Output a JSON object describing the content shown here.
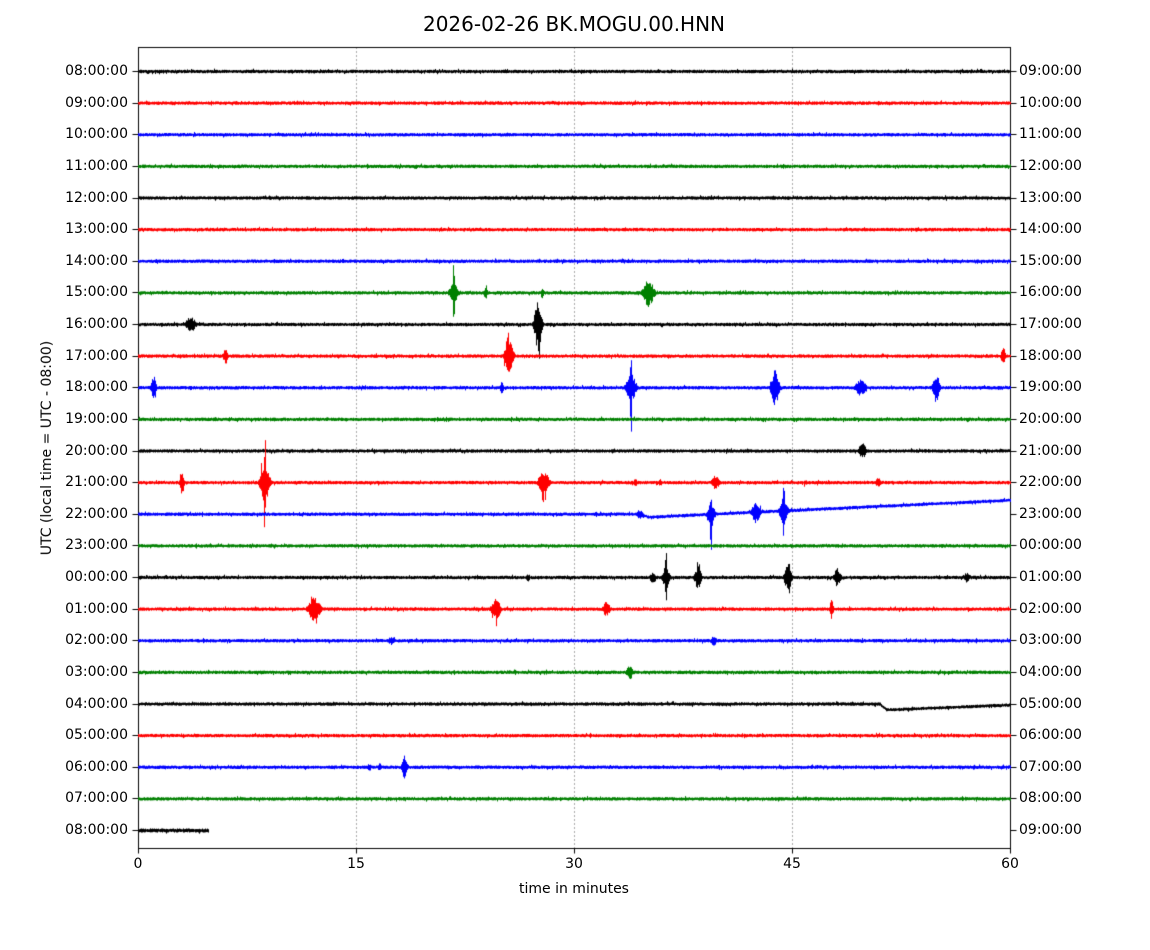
{
  "chart_data": {
    "type": "line",
    "subtype": "seismogram-dayplot",
    "title": "2026-02-26 BK.MOGU.00.HNN",
    "xlabel": "time in minutes",
    "ylabel": "UTC (local time = UTC - 08:00)",
    "x_range": [
      0,
      60
    ],
    "x_ticks": [
      0,
      15,
      30,
      45,
      60
    ],
    "gridlines_minutes": [
      15,
      30,
      45
    ],
    "grid_style": "dotted",
    "trace_color_cycle": [
      "#000000",
      "#ff0000",
      "#0000ff",
      "#008000"
    ],
    "minutes_per_row": 60,
    "rows": [
      {
        "start": "08:00:00",
        "end": "09:00:00",
        "color": "#000000",
        "events": []
      },
      {
        "start": "09:00:00",
        "end": "10:00:00",
        "color": "#ff0000",
        "events": []
      },
      {
        "start": "10:00:00",
        "end": "11:00:00",
        "color": "#0000ff",
        "events": []
      },
      {
        "start": "11:00:00",
        "end": "12:00:00",
        "color": "#008000",
        "events": []
      },
      {
        "start": "12:00:00",
        "end": "13:00:00",
        "color": "#000000",
        "events": []
      },
      {
        "start": "13:00:00",
        "end": "14:00:00",
        "color": "#ff0000",
        "events": []
      },
      {
        "start": "14:00:00",
        "end": "15:00:00",
        "color": "#0000ff",
        "events": []
      },
      {
        "start": "15:00:00",
        "end": "16:00:00",
        "color": "#008000",
        "events": [
          {
            "t": 21.7,
            "a": 30,
            "w": 0.12
          },
          {
            "t": 21.7,
            "a": 10,
            "w": 0.45
          },
          {
            "t": 23.9,
            "a": 9,
            "w": 0.15
          },
          {
            "t": 27.8,
            "a": 6,
            "w": 0.18
          },
          {
            "t": 35.1,
            "a": 14,
            "w": 0.55
          }
        ]
      },
      {
        "start": "16:00:00",
        "end": "17:00:00",
        "color": "#000000",
        "events": [
          {
            "t": 3.6,
            "a": 8,
            "w": 0.5
          },
          {
            "t": 27.5,
            "a": 26,
            "w": 0.35
          }
        ]
      },
      {
        "start": "17:00:00",
        "end": "18:00:00",
        "color": "#ff0000",
        "events": [
          {
            "t": 6.0,
            "a": 9,
            "w": 0.2
          },
          {
            "t": 25.5,
            "a": 21,
            "w": 0.4
          },
          {
            "t": 59.5,
            "a": 11,
            "w": 0.2
          }
        ]
      },
      {
        "start": "18:00:00",
        "end": "19:00:00",
        "color": "#0000ff",
        "events": [
          {
            "t": 1.05,
            "a": 12,
            "w": 0.25
          },
          {
            "t": 25.0,
            "a": 6,
            "w": 0.2
          },
          {
            "t": 33.9,
            "a": 45,
            "w": 0.12
          },
          {
            "t": 33.9,
            "a": 14,
            "w": 0.5
          },
          {
            "t": 43.8,
            "a": 17,
            "w": 0.4
          },
          {
            "t": 49.7,
            "a": 8,
            "w": 0.55
          },
          {
            "t": 54.9,
            "a": 14,
            "w": 0.35
          }
        ]
      },
      {
        "start": "19:00:00",
        "end": "20:00:00",
        "color": "#008000",
        "events": [
          {
            "t": 20.6,
            "a": 3,
            "w": 0.15
          },
          {
            "t": 21.2,
            "a": 3,
            "w": 0.12
          }
        ]
      },
      {
        "start": "20:00:00",
        "end": "21:00:00",
        "color": "#000000",
        "events": [
          {
            "t": 49.8,
            "a": 8,
            "w": 0.4
          }
        ]
      },
      {
        "start": "21:00:00",
        "end": "22:00:00",
        "color": "#ff0000",
        "events": [
          {
            "t": 3.0,
            "a": 13,
            "w": 0.2
          },
          {
            "t": 8.7,
            "a": 48,
            "w": 0.15
          },
          {
            "t": 8.7,
            "a": 22,
            "w": 0.45
          },
          {
            "t": 27.9,
            "a": 12,
            "w": 0.5
          },
          {
            "t": 34.2,
            "a": 4,
            "w": 0.25
          },
          {
            "t": 35.9,
            "a": 4,
            "w": 0.2
          },
          {
            "t": 39.7,
            "a": 7,
            "w": 0.4
          },
          {
            "t": 45.9,
            "a": 3,
            "w": 0.25
          },
          {
            "t": 50.9,
            "a": 5,
            "w": 0.3
          }
        ]
      },
      {
        "start": "22:00:00",
        "end": "23:00:00",
        "color": "#0000ff",
        "events": [
          {
            "t": 34.5,
            "a": 5,
            "w": 0.3
          },
          {
            "t": 39.4,
            "a": 25,
            "w": 0.15
          },
          {
            "t": 39.4,
            "a": 10,
            "w": 0.4
          },
          {
            "t": 42.5,
            "a": 12,
            "w": 0.4
          },
          {
            "t": 44.4,
            "a": 26,
            "w": 0.15
          },
          {
            "t": 44.4,
            "a": 11,
            "w": 0.45
          }
        ],
        "baseline_shift": {
          "t": 34.6,
          "dip": 3,
          "recover": 39.5,
          "end": 0
        }
      },
      {
        "start": "23:00:00",
        "end": "00:00:00",
        "color": "#008000",
        "events": []
      },
      {
        "start": "00:00:00",
        "end": "01:00:00",
        "color": "#000000",
        "events": [
          {
            "t": 26.8,
            "a": 4,
            "w": 0.25
          },
          {
            "t": 35.4,
            "a": 6,
            "w": 0.3
          },
          {
            "t": 36.3,
            "a": 26,
            "w": 0.15
          },
          {
            "t": 36.3,
            "a": 10,
            "w": 0.4
          },
          {
            "t": 38.5,
            "a": 11,
            "w": 0.35
          },
          {
            "t": 44.7,
            "a": 15,
            "w": 0.35
          },
          {
            "t": 48.1,
            "a": 9,
            "w": 0.35
          },
          {
            "t": 57.0,
            "a": 5,
            "w": 0.3
          }
        ]
      },
      {
        "start": "01:00:00",
        "end": "02:00:00",
        "color": "#ff0000",
        "events": [
          {
            "t": 12.1,
            "a": 12,
            "w": 0.6
          },
          {
            "t": 24.6,
            "a": 11,
            "w": 0.45
          },
          {
            "t": 32.2,
            "a": 8,
            "w": 0.35
          },
          {
            "t": 47.7,
            "a": 10,
            "w": 0.18
          }
        ]
      },
      {
        "start": "02:00:00",
        "end": "03:00:00",
        "color": "#0000ff",
        "events": [
          {
            "t": 17.4,
            "a": 4,
            "w": 0.4
          },
          {
            "t": 39.6,
            "a": 5,
            "w": 0.3
          }
        ]
      },
      {
        "start": "03:00:00",
        "end": "04:00:00",
        "color": "#008000",
        "events": [
          {
            "t": 33.8,
            "a": 8,
            "w": 0.3
          }
        ]
      },
      {
        "start": "04:00:00",
        "end": "05:00:00",
        "color": "#000000",
        "events": [],
        "baseline_shift": {
          "t": 51.0,
          "dip": 6,
          "recover": 60,
          "end": 1
        }
      },
      {
        "start": "05:00:00",
        "end": "06:00:00",
        "color": "#ff0000",
        "events": []
      },
      {
        "start": "06:00:00",
        "end": "07:00:00",
        "color": "#0000ff",
        "events": [
          {
            "t": 15.9,
            "a": 4,
            "w": 0.2
          },
          {
            "t": 16.6,
            "a": 4,
            "w": 0.2
          },
          {
            "t": 18.3,
            "a": 13,
            "w": 0.25
          }
        ]
      },
      {
        "start": "07:00:00",
        "end": "08:00:00",
        "color": "#008000",
        "events": []
      },
      {
        "start": "08:00:00",
        "end": "09:00:00",
        "color": "#000000",
        "events": [],
        "trace_end_min": 4.8
      }
    ]
  }
}
